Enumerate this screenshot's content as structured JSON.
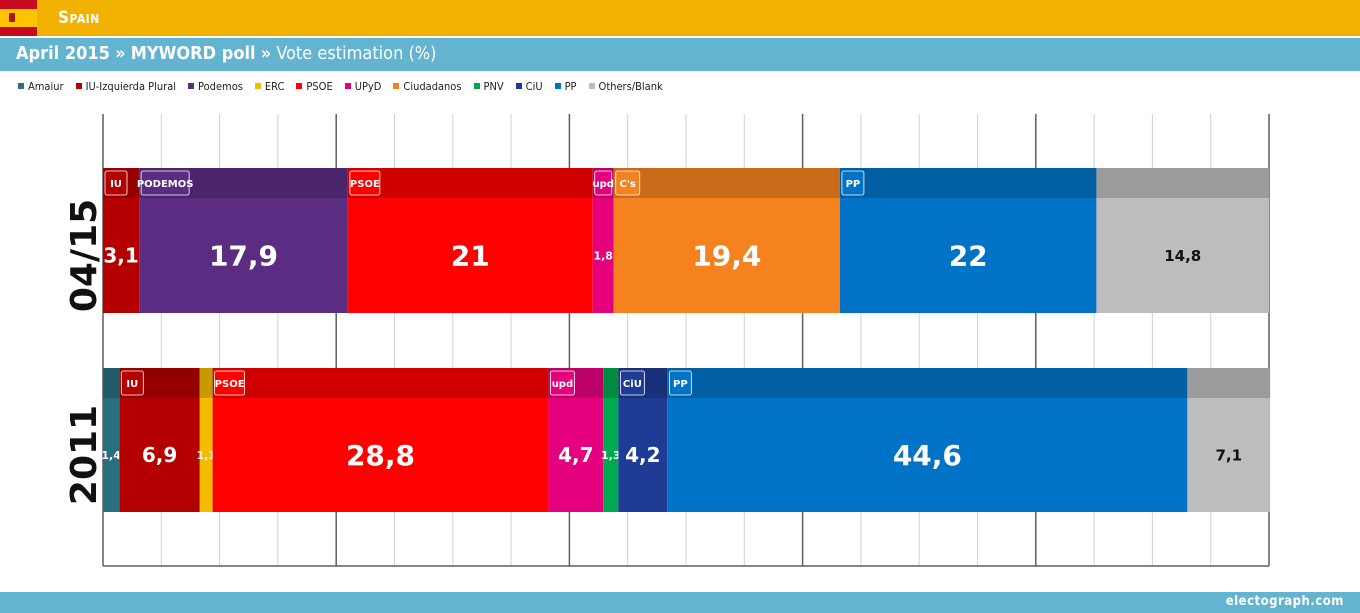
{
  "header": {
    "country": "Spain",
    "date": "April 2015",
    "sep1": "»",
    "pollster": "MYWORD poll",
    "sep2": "»",
    "subject": "Vote estimation (%)"
  },
  "colors": {
    "header_bg": "#f2b100",
    "subheader_bg": "#62b4d0",
    "footer_bg": "#62b4d0"
  },
  "legend": [
    {
      "label": "Amaiur",
      "color": "#2a6f7f"
    },
    {
      "label": "IU-Izquierda Plural",
      "color": "#b50000"
    },
    {
      "label": "Podemos",
      "color": "#5a2d82"
    },
    {
      "label": "ERC",
      "color": "#f5bc00"
    },
    {
      "label": "PSOE",
      "color": "#ff0000"
    },
    {
      "label": "UPyD",
      "color": "#e5007e"
    },
    {
      "label": "Ciudadanos",
      "color": "#f6821f"
    },
    {
      "label": "PNV",
      "color": "#00a94f"
    },
    {
      "label": "CiU",
      "color": "#1e3c96"
    },
    {
      "label": "PP",
      "color": "#0073c6"
    },
    {
      "label": "Others/Blank",
      "color": "#bdbdbd"
    }
  ],
  "chart_data": {
    "type": "bar",
    "orientation": "horizontal-stacked",
    "xlim": [
      0,
      100
    ],
    "grid": true,
    "categories": [
      "04/15",
      "2011"
    ],
    "rows": [
      {
        "label": "04/15",
        "segments": [
          {
            "party": "IU-Izquierda Plural",
            "value": 3.1,
            "label": "3,1",
            "color": "#b50000",
            "logo": "IU"
          },
          {
            "party": "Podemos",
            "value": 17.9,
            "label": "17,9",
            "color": "#5a2d82",
            "logo": "PODEMOS"
          },
          {
            "party": "PSOE",
            "value": 21,
            "label": "21",
            "color": "#ff0000",
            "logo": "PSOE"
          },
          {
            "party": "UPyD",
            "value": 1.8,
            "label": "1,8",
            "color": "#e5007e",
            "logo": "upd"
          },
          {
            "party": "Ciudadanos",
            "value": 19.4,
            "label": "19,4",
            "color": "#f6821f",
            "logo": "C's"
          },
          {
            "party": "PP",
            "value": 22,
            "label": "22",
            "color": "#0073c6",
            "logo": "PP"
          },
          {
            "party": "Others/Blank",
            "value": 14.8,
            "label": "14,8",
            "color": "#bdbdbd",
            "logo": ""
          }
        ]
      },
      {
        "label": "2011",
        "segments": [
          {
            "party": "Amaiur",
            "value": 1.4,
            "label": "1,4",
            "color": "#2a6f7f",
            "logo": ""
          },
          {
            "party": "IU-Izquierda Plural",
            "value": 6.9,
            "label": "6,9",
            "color": "#b50000",
            "logo": "IU"
          },
          {
            "party": "ERC",
            "value": 1.1,
            "label": "1,1",
            "color": "#f5bc00",
            "logo": ""
          },
          {
            "party": "PSOE",
            "value": 28.8,
            "label": "28,8",
            "color": "#ff0000",
            "logo": "PSOE"
          },
          {
            "party": "UPyD",
            "value": 4.7,
            "label": "4,7",
            "color": "#e5007e",
            "logo": "upd"
          },
          {
            "party": "PNV",
            "value": 1.3,
            "label": "1,3",
            "color": "#00a94f",
            "logo": ""
          },
          {
            "party": "CiU",
            "value": 4.2,
            "label": "4,2",
            "color": "#1e3c96",
            "logo": "CiU"
          },
          {
            "party": "PP",
            "value": 44.6,
            "label": "44,6",
            "color": "#0073c6",
            "logo": "PP"
          },
          {
            "party": "Others/Blank",
            "value": 7.1,
            "label": "7,1",
            "color": "#bdbdbd",
            "logo": ""
          }
        ]
      }
    ]
  },
  "footer": {
    "credit": "electograph.com"
  }
}
